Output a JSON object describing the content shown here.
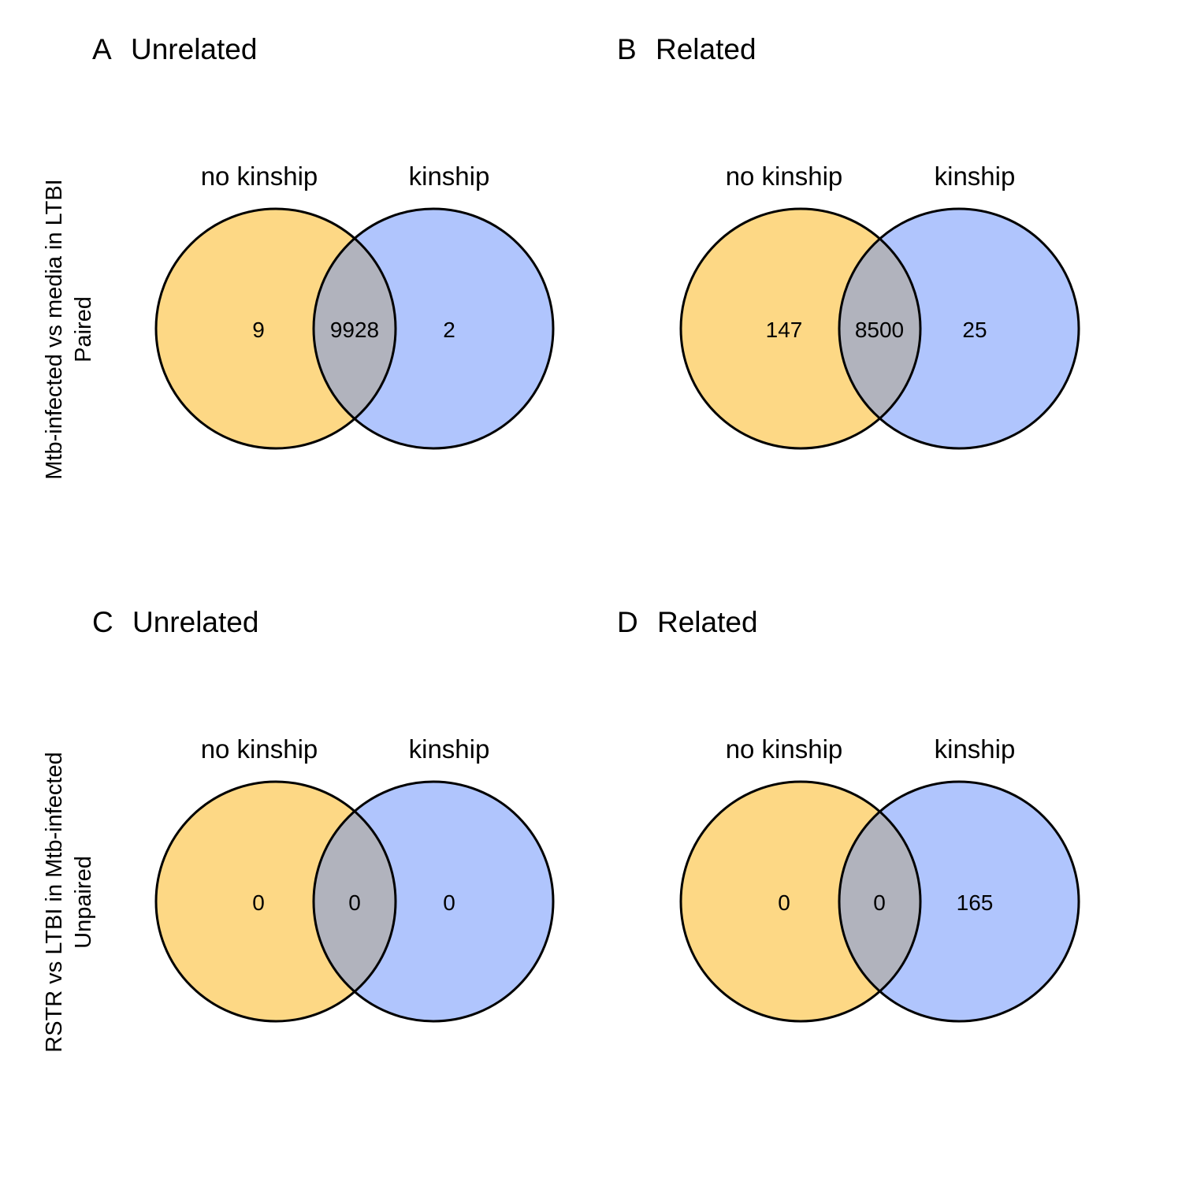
{
  "chart_data": {
    "type": "venn",
    "colors": {
      "no_kinship": "#FDD885",
      "kinship": "#B0C5FD",
      "overlap": "#B1B3BD",
      "stroke": "#000000"
    },
    "row_labels": [
      {
        "line1": "Mtb-infected vs media in LTBI",
        "line2": "Paired"
      },
      {
        "line1": "RSTR vs LTBI in Mtb-infected",
        "line2": "Unpaired"
      }
    ],
    "panels": [
      {
        "letter": "A",
        "title": "Unrelated",
        "sets": [
          "no kinship",
          "kinship"
        ],
        "only_left": "9",
        "both": "9928",
        "only_right": "2"
      },
      {
        "letter": "B",
        "title": "Related",
        "sets": [
          "no kinship",
          "kinship"
        ],
        "only_left": "147",
        "both": "8500",
        "only_right": "25"
      },
      {
        "letter": "C",
        "title": "Unrelated",
        "sets": [
          "no kinship",
          "kinship"
        ],
        "only_left": "0",
        "both": "0",
        "only_right": "0"
      },
      {
        "letter": "D",
        "title": "Related",
        "sets": [
          "no kinship",
          "kinship"
        ],
        "only_left": "0",
        "both": "0",
        "only_right": "165"
      }
    ]
  }
}
